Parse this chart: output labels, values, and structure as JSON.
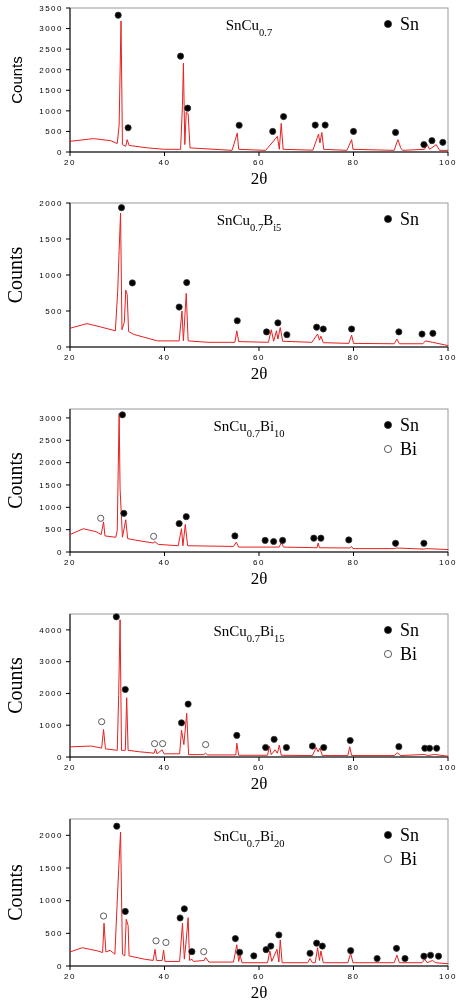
{
  "chart_data": [
    {
      "type": "line",
      "title": "SnCu$_{0.7}$",
      "xlabel": "2θ",
      "ylabel": "Counts",
      "xlim": [
        20,
        100
      ],
      "xticks": [
        20,
        40,
        60,
        80,
        100
      ],
      "ylim": [
        0,
        3500
      ],
      "yticks": [
        0,
        500,
        1000,
        1500,
        2000,
        2500,
        3000,
        3500
      ],
      "legend": "top right",
      "series": [
        {
          "type": "line",
          "color": "#e82020",
          "x": [
            20,
            25,
            28.6,
            30,
            30.4,
            30.8,
            31.1,
            31.8,
            32.1,
            32.5,
            36.4,
            40,
            43.4,
            43.8,
            44,
            44.3,
            44.6,
            45,
            45.4,
            54.3,
            55.4,
            55.7,
            61.4,
            63.9,
            64.3,
            64.7,
            65.1,
            71.4,
            72.6,
            72.9,
            73.3,
            73.7,
            78.6,
            79.6,
            79.9,
            88.6,
            89.4,
            90,
            90.4,
            95,
            95.6,
            96.1,
            97.5,
            98.2,
            100
          ],
          "values": [
            260,
            325,
            275,
            205,
            655,
            3185,
            180,
            140,
            300,
            160,
            100,
            65,
            65,
            1130,
            2160,
            180,
            970,
            930,
            100,
            40,
            460,
            65,
            40,
            380,
            65,
            695,
            65,
            45,
            435,
            220,
            475,
            65,
            40,
            300,
            65,
            40,
            300,
            100,
            40,
            65,
            180,
            65,
            180,
            40,
            40
          ]
        },
        {
          "type": "scatter",
          "name": "Sn",
          "color": "#000000",
          "marker": "circle",
          "x": [
            30.2,
            32.3,
            43.4,
            44.9,
            55.8,
            62.9,
            65.2,
            71.9,
            74,
            80,
            88.9,
            94.9,
            96.6,
            98.9
          ],
          "values": [
            3325,
            590,
            2330,
            1065,
            650,
            500,
            860,
            655,
            655,
            500,
            475,
            180,
            275,
            235
          ]
        }
      ]
    },
    {
      "type": "line",
      "title": "SnCu$_{0.7}$B$_{i5}$",
      "xlabel": "2θ",
      "ylabel": "Counts",
      "xlim": [
        20,
        100
      ],
      "xticks": [
        20,
        40,
        60,
        80,
        100
      ],
      "ylim": [
        0,
        2000
      ],
      "yticks": [
        0,
        500,
        1000,
        1500,
        2000
      ],
      "legend": "top right",
      "series": [
        {
          "type": "line",
          "color": "#e82020",
          "x": [
            20,
            23.6,
            26.4,
            29.6,
            30.1,
            30.4,
            30.7,
            31,
            31.5,
            31.8,
            32.1,
            32.4,
            33.5,
            38.5,
            43.1,
            43.7,
            44,
            44.6,
            45,
            49.2,
            54.9,
            55.3,
            55.7,
            62,
            62.6,
            63.1,
            63.7,
            64,
            64.5,
            65,
            71.2,
            72.4,
            72.8,
            73.1,
            73.6,
            79,
            79.6,
            80,
            88.6,
            89.2,
            89.7,
            94.7,
            95.2,
            96.7,
            100
          ],
          "values": [
            260,
            325,
            280,
            225,
            780,
            1340,
            1860,
            240,
            345,
            790,
            730,
            215,
            175,
            85,
            85,
            500,
            85,
            745,
            85,
            65,
            65,
            225,
            75,
            65,
            240,
            80,
            225,
            110,
            270,
            80,
            65,
            180,
            95,
            150,
            60,
            50,
            165,
            50,
            45,
            110,
            45,
            45,
            85,
            65,
            20
          ]
        },
        {
          "type": "scatter",
          "name": "Sn",
          "color": "#000000",
          "marker": "circle",
          "x": [
            30.9,
            33.2,
            43.1,
            44.7,
            55.4,
            61.6,
            64,
            65.9,
            72.2,
            73.6,
            79.6,
            89.6,
            94.5,
            96.8
          ],
          "values": [
            1935,
            890,
            555,
            895,
            365,
            210,
            335,
            170,
            275,
            250,
            250,
            210,
            180,
            190
          ]
        }
      ]
    },
    {
      "type": "line",
      "title": "SnCu$_{0.7}$Bi$_{10}$",
      "xlabel": "2θ",
      "ylabel": "Counts",
      "xlim": [
        20,
        100
      ],
      "xticks": [
        20,
        40,
        60,
        80,
        100
      ],
      "ylim": [
        0,
        3200
      ],
      "yticks": [
        0,
        500,
        1000,
        1500,
        2000,
        2500,
        3000
      ],
      "legend": "top right",
      "series": [
        {
          "type": "line",
          "color": "#e82020",
          "x": [
            20,
            22.8,
            25.5,
            26.6,
            27.1,
            27.4,
            29.7,
            30,
            30.4,
            30.6,
            31.1,
            31.8,
            32.2,
            33.9,
            37.7,
            37.9,
            38.7,
            42.9,
            43.6,
            43.9,
            44.4,
            44.9,
            54.6,
            55.2,
            55.7,
            64.3,
            64.7,
            65.2,
            72.3,
            72.5,
            72.8,
            79.2,
            79.6,
            79.9,
            88.6,
            89.1,
            94.8,
            95.5,
            100
          ],
          "values": [
            390,
            520,
            455,
            390,
            675,
            360,
            330,
            490,
            3100,
            1405,
            330,
            720,
            300,
            265,
            200,
            235,
            170,
            140,
            520,
            140,
            615,
            140,
            125,
            220,
            110,
            110,
            215,
            110,
            95,
            200,
            95,
            90,
            125,
            75,
            75,
            90,
            65,
            75,
            55
          ]
        },
        {
          "type": "scatter",
          "name": "Sn",
          "color": "#000000",
          "marker": "circle",
          "x": [
            31.1,
            31.4,
            43.1,
            44.6,
            54.9,
            61.3,
            63.1,
            65,
            71.6,
            73.1,
            79,
            88.9,
            94.9
          ],
          "values": [
            3070,
            865,
            635,
            790,
            360,
            260,
            235,
            260,
            310,
            310,
            270,
            195,
            195
          ]
        },
        {
          "type": "scatter",
          "name": "Bi",
          "color": "#ffffff",
          "marker": "circle",
          "x": [
            26.5,
            37.7
          ],
          "values": [
            755,
            350
          ]
        }
      ]
    },
    {
      "type": "line",
      "title": "SnCu$_{0.7}$Bi$_{15}$",
      "xlabel": "2θ",
      "ylabel": "Counts",
      "xlim": [
        20,
        100
      ],
      "xticks": [
        20,
        40,
        60,
        80,
        100
      ],
      "ylim": [
        0,
        4500
      ],
      "yticks": [
        0,
        1000,
        2000,
        3000,
        4000
      ],
      "legend": "top right",
      "series": [
        {
          "type": "line",
          "color": "#e82020",
          "x": [
            20,
            24.5,
            26.7,
            27.1,
            27.5,
            30,
            30.3,
            30.6,
            30.9,
            31.7,
            32,
            32.3,
            34.7,
            37.8,
            38.1,
            38.4,
            39.5,
            39.9,
            43.2,
            43.6,
            44.1,
            44.7,
            45.1,
            48.3,
            48.7,
            49.1,
            55.1,
            55.3,
            55.7,
            61.8,
            62.2,
            62.6,
            63.4,
            63.9,
            64.3,
            64.7,
            71.3,
            72.1,
            72.5,
            72.9,
            73.4,
            78.8,
            79.2,
            79.6,
            88.6,
            89.3,
            89.9,
            95.1,
            95.7,
            97.1,
            100
          ],
          "values": [
            320,
            345,
            280,
            865,
            255,
            210,
            1935,
            4320,
            210,
            210,
            1865,
            210,
            165,
            120,
            255,
            100,
            225,
            100,
            100,
            845,
            390,
            1375,
            75,
            75,
            120,
            65,
            65,
            435,
            55,
            55,
            345,
            75,
            225,
            120,
            375,
            55,
            45,
            300,
            165,
            280,
            45,
            45,
            320,
            45,
            45,
            135,
            45,
            80,
            45,
            80,
            25
          ]
        },
        {
          "type": "scatter",
          "name": "Sn",
          "color": "#000000",
          "marker": "circle",
          "x": [
            29.8,
            31.7,
            43.6,
            45,
            55.3,
            61.4,
            63.2,
            65.8,
            71.3,
            73.7,
            79.3,
            89.6,
            95.1,
            96.1,
            97.6
          ],
          "values": [
            4410,
            2125,
            1075,
            1665,
            680,
            300,
            555,
            300,
            345,
            300,
            520,
            325,
            275,
            275,
            275
          ]
        },
        {
          "type": "scatter",
          "name": "Bi",
          "color": "#ffffff",
          "marker": "circle",
          "x": [
            26.7,
            37.9,
            39.6,
            48.7
          ],
          "values": [
            1110,
            420,
            420,
            390
          ]
        }
      ]
    },
    {
      "type": "line",
      "title": "SnCu$_{0.7}$Bi$_{20}$",
      "xlabel": "2θ",
      "ylabel": "Counts",
      "xlim": [
        20,
        100
      ],
      "xticks": [
        20,
        40,
        60,
        80,
        100
      ],
      "ylim": [
        0,
        2250
      ],
      "yticks": [
        0,
        500,
        1000,
        1500,
        2000
      ],
      "legend": "top right",
      "series": [
        {
          "type": "line",
          "color": "#e82020",
          "x": [
            20,
            22.6,
            25.9,
            26.9,
            27.2,
            27.6,
            28.5,
            29.5,
            30.3,
            30.7,
            31.1,
            31.6,
            31.9,
            32.3,
            32.5,
            35.7,
            37.6,
            38,
            38.3,
            39.5,
            39.8,
            40.1,
            43.2,
            43.8,
            44.2,
            44.6,
            45,
            45.3,
            45.8,
            46.1,
            48.4,
            48.7,
            49.4,
            54.6,
            55.3,
            55.7,
            56,
            56.4,
            61.8,
            62.3,
            62.7,
            63.8,
            64.2,
            64.5,
            64.9,
            70.3,
            70.8,
            71.3,
            71.9,
            72.4,
            72.8,
            73.1,
            73.6,
            78.8,
            79.4,
            79.9,
            88.6,
            89.2,
            89.7,
            94.5,
            95.1,
            95.6,
            96.7,
            97.4,
            100
          ],
          "values": [
            215,
            280,
            230,
            205,
            655,
            215,
            240,
            180,
            1475,
            2050,
            180,
            155,
            715,
            620,
            155,
            105,
            85,
            255,
            85,
            85,
            245,
            70,
            70,
            655,
            105,
            400,
            740,
            85,
            105,
            70,
            85,
            130,
            60,
            60,
            325,
            70,
            165,
            50,
            50,
            230,
            70,
            255,
            60,
            400,
            50,
            50,
            115,
            50,
            50,
            280,
            85,
            230,
            50,
            50,
            195,
            50,
            50,
            165,
            50,
            50,
            105,
            50,
            85,
            50,
            35
          ]
        },
        {
          "type": "scatter",
          "name": "Sn",
          "color": "#000000",
          "marker": "circle",
          "x": [
            29.9,
            31.7,
            43.3,
            44.2,
            45.8,
            55,
            55.9,
            58.9,
            61.5,
            62.5,
            64.2,
            70.8,
            72.2,
            73.4,
            79.4,
            85,
            89.1,
            90.9,
            94.9,
            96.3,
            98
          ],
          "values": [
            2140,
            835,
            735,
            875,
            220,
            420,
            210,
            155,
            250,
            305,
            475,
            195,
            350,
            305,
            235,
            115,
            270,
            115,
            150,
            165,
            150
          ]
        },
        {
          "type": "scatter",
          "name": "Bi",
          "color": "#ffffff",
          "marker": "circle",
          "x": [
            27.1,
            38.2,
            40.3,
            48.3
          ],
          "values": [
            765,
            385,
            360,
            220
          ]
        }
      ]
    }
  ]
}
